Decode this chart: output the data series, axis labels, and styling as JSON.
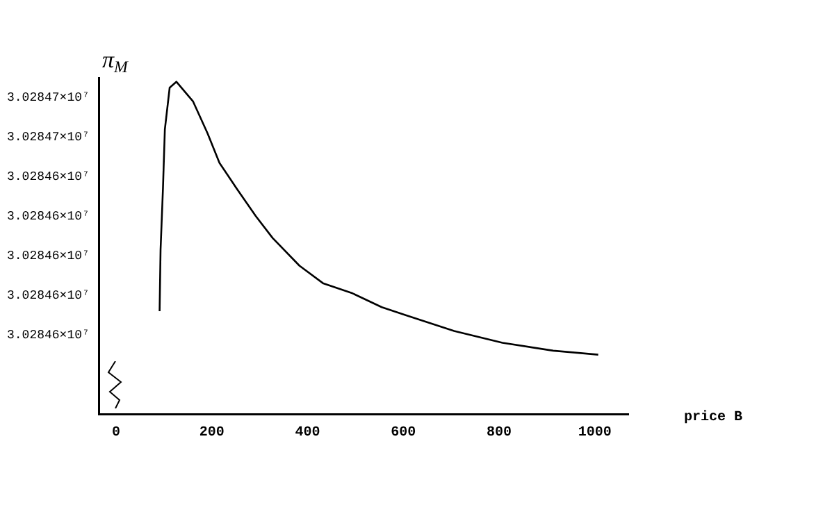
{
  "chart_data": {
    "type": "line",
    "xlabel": "price B",
    "ylabel": "π$_{M}$",
    "x": [
      91,
      93,
      98,
      102,
      112,
      126,
      161,
      191,
      216,
      252,
      292,
      327,
      383,
      433,
      494,
      555,
      605,
      706,
      807,
      913,
      1007
    ],
    "values": [
      30284572,
      30284603,
      30284634,
      30284664,
      30284685,
      30284688,
      30284678,
      30284662,
      30284647,
      30284634,
      30284620,
      30284609,
      30284595,
      30284586,
      30284581,
      30284574,
      30284570,
      30284562,
      30284556,
      30284552,
      30284550
    ],
    "color": "#000000",
    "marker": "none",
    "line_style": "solid",
    "grid": false,
    "legend": false,
    "xlim": [
      -35,
      1070
    ],
    "xticks": [
      0,
      200,
      400,
      600,
      800,
      1000
    ],
    "ylim": [
      30284520,
      30284690
    ],
    "yticks": [
      {
        "value": 30284680,
        "label": "3.02847×10⁷"
      },
      {
        "value": 30284660,
        "label": "3.02847×10⁷"
      },
      {
        "value": 30284640,
        "label": "3.02846×10⁷"
      },
      {
        "value": 30284620,
        "label": "3.02846×10⁷"
      },
      {
        "value": 30284600,
        "label": "3.02846×10⁷"
      },
      {
        "value": 30284580,
        "label": "3.02846×10⁷"
      },
      {
        "value": 30284560,
        "label": "3.02846×10⁷"
      }
    ]
  }
}
